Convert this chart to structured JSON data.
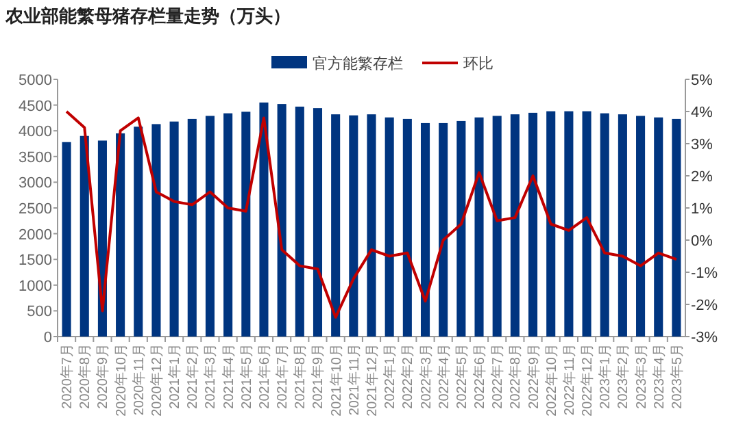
{
  "chart_data": {
    "type": "bar",
    "title": "农业部能繁母猪存栏量走势（万头）",
    "categories": [
      "2020年7月",
      "2020年8月",
      "2020年9月",
      "2020年10月",
      "2020年11月",
      "2020年12月",
      "2021年1月",
      "2021年2月",
      "2021年3月",
      "2021年4月",
      "2021年5月",
      "2021年6月",
      "2021年7月",
      "2021年8月",
      "2021年9月",
      "2021年10月",
      "2021年11月",
      "2021年12月",
      "2022年1月",
      "2022年2月",
      "2022年3月",
      "2022年4月",
      "2022年5月",
      "2022年6月",
      "2022年7月",
      "2022年8月",
      "2022年9月",
      "2022年10月",
      "2022年11月",
      "2022年12月",
      "2023年1月",
      "2023年2月",
      "2023年3月",
      "2023年4月",
      "2023年5月"
    ],
    "series": [
      {
        "name": "官方能繁存栏",
        "color": "#003580",
        "values": [
          3780,
          3900,
          3810,
          3950,
          4080,
          4130,
          4180,
          4230,
          4290,
          4340,
          4370,
          4550,
          4520,
          4470,
          4440,
          4320,
          4300,
          4320,
          4260,
          4230,
          4150,
          4150,
          4190,
          4260,
          4290,
          4320,
          4350,
          4380,
          4380,
          4380,
          4340,
          4320,
          4290,
          4260,
          4230
        ]
      },
      {
        "name": "环比",
        "type": "line",
        "axis": "y2",
        "color": "#c00000",
        "values": [
          4.0,
          3.5,
          -2.2,
          3.4,
          3.8,
          1.5,
          1.2,
          1.1,
          1.5,
          1.0,
          0.9,
          3.8,
          -0.3,
          -0.8,
          -0.9,
          -2.4,
          -1.2,
          -0.3,
          -0.5,
          -0.4,
          -1.9,
          0.0,
          0.5,
          2.1,
          0.6,
          0.7,
          2.0,
          0.5,
          0.3,
          0.7,
          -0.4,
          -0.5,
          -0.8,
          -0.4,
          -0.6
        ]
      }
    ],
    "ylim": [
      0,
      5000
    ],
    "yticks": [
      0,
      500,
      1000,
      1500,
      2000,
      2500,
      3000,
      3500,
      4000,
      4500,
      5000
    ],
    "y2lim": [
      -3,
      5
    ],
    "y2ticks": [
      {
        "value": -3,
        "label": "-3%"
      },
      {
        "value": -2,
        "label": "-2%"
      },
      {
        "value": -1,
        "label": "-1%"
      },
      {
        "value": 0,
        "label": "0%"
      },
      {
        "value": 1,
        "label": "1%"
      },
      {
        "value": 2,
        "label": "2%"
      },
      {
        "value": 3,
        "label": "3%"
      },
      {
        "value": 4,
        "label": "4%"
      },
      {
        "value": 5,
        "label": "5%"
      }
    ],
    "legend": "top",
    "grid": false
  }
}
